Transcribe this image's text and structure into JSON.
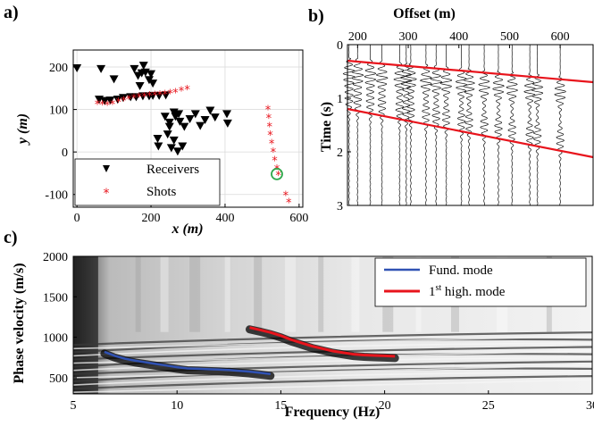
{
  "chart_data": [
    {
      "panel_label": "a)",
      "type": "scatter",
      "xlabel": "x (m)",
      "ylabel": "y (m)",
      "xlim": [
        -10,
        610
      ],
      "ylim": [
        -130,
        240
      ],
      "xticks": [
        0,
        200,
        400,
        600
      ],
      "yticks": [
        -100,
        0,
        100,
        200
      ],
      "grid": true,
      "legend_position": "bottom-left",
      "series": [
        {
          "name": "Receivers",
          "marker": "triangle-down",
          "color": "#000000",
          "points": [
            [
              0,
              198
            ],
            [
              65,
              196
            ],
            [
              100,
              172
            ],
            [
              155,
              196
            ],
            [
              165,
              180
            ],
            [
              170,
              156
            ],
            [
              175,
              186
            ],
            [
              180,
              204
            ],
            [
              185,
              188
            ],
            [
              195,
              170
            ],
            [
              200,
              184
            ],
            [
              205,
              162
            ],
            [
              60,
              124
            ],
            [
              75,
              121
            ],
            [
              90,
              122
            ],
            [
              110,
              124
            ],
            [
              125,
              128
            ],
            [
              145,
              130
            ],
            [
              160,
              130
            ],
            [
              178,
              132
            ],
            [
              195,
              132
            ],
            [
              205,
              133
            ],
            [
              222,
              133
            ],
            [
              240,
              134
            ],
            [
              238,
              84
            ],
            [
              250,
              70
            ],
            [
              262,
              94
            ],
            [
              266,
              84
            ],
            [
              275,
              90
            ],
            [
              278,
              72
            ],
            [
              290,
              60
            ],
            [
              305,
              78
            ],
            [
              320,
              90
            ],
            [
              333,
              62
            ],
            [
              346,
              76
            ],
            [
              360,
              98
            ],
            [
              373,
              82
            ],
            [
              405,
              90
            ],
            [
              407,
              68
            ],
            [
              218,
              32
            ],
            [
              220,
              14
            ],
            [
              245,
              42
            ],
            [
              255,
              10
            ],
            [
              262,
              28
            ],
            [
              272,
              2
            ],
            [
              285,
              14
            ],
            [
              250,
              60
            ]
          ]
        },
        {
          "name": "Shots",
          "marker": "asterisk",
          "color": "#e8141c",
          "points": [
            [
              55,
              115
            ],
            [
              68,
              114
            ],
            [
              82,
              113
            ],
            [
              96,
              115
            ],
            [
              112,
              120
            ],
            [
              126,
              123
            ],
            [
              140,
              127
            ],
            [
              154,
              130
            ],
            [
              168,
              132
            ],
            [
              182,
              133
            ],
            [
              196,
              135
            ],
            [
              210,
              136
            ],
            [
              224,
              137
            ],
            [
              238,
              138
            ],
            [
              252,
              140
            ],
            [
              266,
              142
            ],
            [
              282,
              146
            ],
            [
              298,
              150
            ],
            [
              516,
              102
            ],
            [
              518,
              82
            ],
            [
              520,
              62
            ],
            [
              522,
              42
            ],
            [
              526,
              22
            ],
            [
              530,
              2
            ],
            [
              534,
              -18
            ],
            [
              540,
              -38
            ],
            [
              544,
              -52
            ],
            [
              564,
              -100
            ],
            [
              572,
              -116
            ]
          ]
        }
      ],
      "highlight": {
        "label": "selected shot",
        "x": 540,
        "y": -52,
        "color": "#2da84a"
      }
    },
    {
      "panel_label": "b)",
      "type": "seismogram",
      "xlabel": "Offset (m)",
      "ylabel": "Time (s)",
      "xlim": [
        180,
        665
      ],
      "ylim": [
        0,
        3
      ],
      "xticks": [
        200,
        300,
        400,
        500,
        600
      ],
      "yticks": [
        0,
        1,
        2,
        3
      ],
      "trace_offsets": [
        183,
        200,
        225,
        248,
        283,
        296,
        305,
        335,
        355,
        375,
        405,
        420,
        450,
        478,
        505,
        540,
        555,
        600
      ],
      "lines": [
        {
          "name": "upper mute line",
          "color": "#e8141c",
          "points": [
            [
              180,
              0.3
            ],
            [
              665,
              0.7
            ]
          ]
        },
        {
          "name": "lower mute line",
          "color": "#e8141c",
          "points": [
            [
              180,
              1.2
            ],
            [
              665,
              2.1
            ]
          ]
        }
      ]
    },
    {
      "panel_label": "c)",
      "type": "heatmap",
      "xlabel": "Frequency (Hz)",
      "ylabel": "Phase velocity (m/s)",
      "xlim": [
        5,
        30
      ],
      "ylim": [
        300,
        2000
      ],
      "xticks": [
        5,
        10,
        15,
        20,
        25,
        30
      ],
      "yticks": [
        500,
        1000,
        1500,
        2000
      ],
      "legend_position": "top-right",
      "series": [
        {
          "name": "Fund. mode",
          "color": "#3052b4",
          "points": [
            [
              6.5,
              820
            ],
            [
              7,
              770
            ],
            [
              7.5,
              735
            ],
            [
              8,
              710
            ],
            [
              8.5,
              690
            ],
            [
              9,
              670
            ],
            [
              9.5,
              650
            ],
            [
              10,
              630
            ],
            [
              10.5,
              615
            ],
            [
              11,
              610
            ],
            [
              11.5,
              605
            ],
            [
              12,
              600
            ],
            [
              12.5,
              595
            ],
            [
              13,
              585
            ],
            [
              13.5,
              575
            ],
            [
              14,
              560
            ],
            [
              14.5,
              545
            ]
          ]
        },
        {
          "name": "1st high. mode",
          "name_parts": {
            "base": "1",
            "sup": "st",
            "rest": " high. mode"
          },
          "color": "#e8141c",
          "points": [
            [
              13.5,
              1120
            ],
            [
              14,
              1090
            ],
            [
              14.5,
              1060
            ],
            [
              15,
              1020
            ],
            [
              15.5,
              970
            ],
            [
              16,
              930
            ],
            [
              16.5,
              890
            ],
            [
              17,
              860
            ],
            [
              17.5,
              830
            ],
            [
              18,
              810
            ],
            [
              18.5,
              790
            ],
            [
              19,
              780
            ],
            [
              19.5,
              775
            ],
            [
              20,
              770
            ],
            [
              20.5,
              765
            ]
          ]
        }
      ]
    }
  ]
}
